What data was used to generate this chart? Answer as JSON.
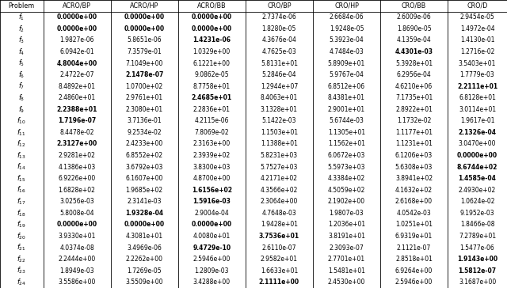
{
  "columns": [
    "Problem",
    "ACRO/BP",
    "ACRO/HP",
    "ACRO/BB",
    "CRO/BP",
    "CRO/HP",
    "CRO/BB",
    "CRO/D"
  ],
  "rows": [
    [
      "f_1",
      "0.0000e+00",
      "0.0000e+00",
      "0.0000e+00",
      "2.7374e-06",
      "2.6684e-06",
      "2.6009e-06",
      "2.9454e-05"
    ],
    [
      "f_2",
      "0.0000e+00",
      "0.0000e+00",
      "0.0000e+00",
      "1.8280e-05",
      "1.9248e-05",
      "1.8690e-05",
      "1.4972e-04"
    ],
    [
      "f_3",
      "1.9827e-06",
      "5.8651e-06",
      "1.4231e-06",
      "4.3676e-04",
      "5.3923e-04",
      "4.1359e-04",
      "1.4130e-01"
    ],
    [
      "f_4",
      "6.0942e-01",
      "7.3579e-01",
      "1.0329e+00",
      "4.7625e-03",
      "4.7484e-03",
      "4.4301e-03",
      "1.2716e-02"
    ],
    [
      "f_5",
      "4.8004e+00",
      "7.1049e+00",
      "6.1221e+00",
      "5.8131e+01",
      "5.8909e+01",
      "5.3928e+01",
      "3.5403e+01"
    ],
    [
      "f_6",
      "2.4722e-07",
      "2.1478e-07",
      "9.0862e-05",
      "5.2846e-04",
      "5.9767e-04",
      "6.2956e-04",
      "1.7779e-03"
    ],
    [
      "f_7",
      "8.4892e+01",
      "1.0700e+02",
      "8.7758e+01",
      "1.2944e+07",
      "6.8512e+06",
      "4.6210e+06",
      "2.2111e+01"
    ],
    [
      "f_8",
      "2.4860e+01",
      "2.9761e+01",
      "2.4685e+01",
      "8.4063e+01",
      "8.4381e+01",
      "7.1735e+01",
      "6.8128e+01"
    ],
    [
      "f_9",
      "2.2388e+01",
      "2.3080e+01",
      "2.2836e+01",
      "3.1328e+01",
      "2.9001e+01",
      "2.8922e+01",
      "3.0114e+01"
    ],
    [
      "f_10",
      "1.7196e-07",
      "3.7136e-01",
      "4.2115e-06",
      "5.1422e-03",
      "5.6744e-03",
      "1.1732e-02",
      "1.9617e-01"
    ],
    [
      "f_11",
      "8.4478e-02",
      "9.2534e-02",
      "7.8069e-02",
      "1.1503e+01",
      "1.1305e+01",
      "1.1177e+01",
      "2.1326e-04"
    ],
    [
      "f_12",
      "2.3127e+00",
      "2.4233e+00",
      "2.3163e+00",
      "1.1388e+01",
      "1.1562e+01",
      "1.1231e+01",
      "3.0470e+00"
    ],
    [
      "f_13",
      "2.9281e+02",
      "6.8552e+02",
      "2.3939e+02",
      "5.8231e+03",
      "6.0672e+03",
      "6.1206e+03",
      "0.0000e+00"
    ],
    [
      "f_14",
      "4.1386e+03",
      "3.6792e+03",
      "3.8300e+03",
      "5.7527e+03",
      "5.5973e+03",
      "5.6308e+03",
      "8.6744e+02"
    ],
    [
      "f_15",
      "6.9226e+00",
      "6.1607e+00",
      "4.8700e+00",
      "4.2171e+02",
      "4.3384e+02",
      "3.8941e+02",
      "1.4585e-04"
    ],
    [
      "f_16",
      "1.6828e+02",
      "1.9685e+02",
      "1.6156e+02",
      "4.3566e+02",
      "4.5059e+02",
      "4.1632e+02",
      "2.4930e+02"
    ],
    [
      "f_17",
      "3.0256e-03",
      "2.3141e-03",
      "1.5916e-03",
      "2.3064e+00",
      "2.1902e+00",
      "2.6168e+00",
      "1.0624e-02"
    ],
    [
      "f_18",
      "5.8008e-04",
      "1.9328e-04",
      "2.9004e-04",
      "4.7648e-03",
      "1.9807e-03",
      "4.0542e-03",
      "9.1952e-03"
    ],
    [
      "f_19",
      "0.0000e+00",
      "0.0000e+00",
      "0.0000e+00",
      "1.9428e+01",
      "1.2036e+01",
      "1.0251e+01",
      "1.8466e-08"
    ],
    [
      "f_20",
      "3.9330e+01",
      "4.3081e+01",
      "4.0080e+01",
      "3.7536e+01",
      "3.8191e+01",
      "6.9319e+01",
      "7.2789e+01"
    ],
    [
      "f_21",
      "4.0374e-08",
      "3.4969e-06",
      "9.4729e-10",
      "2.6110e-07",
      "2.3093e-07",
      "2.1121e-07",
      "1.5477e-06"
    ],
    [
      "f_22",
      "2.2444e+00",
      "2.2262e+00",
      "2.5946e+00",
      "2.9582e+01",
      "2.7701e+01",
      "2.8518e+01",
      "1.9143e+00"
    ],
    [
      "f_23",
      "1.8949e-03",
      "1.7269e-05",
      "1.2809e-03",
      "1.6633e+01",
      "1.5481e+01",
      "6.9264e+00",
      "1.5812e-07"
    ],
    [
      "f_24",
      "3.5586e+00",
      "3.5509e+00",
      "3.4288e+00",
      "2.1111e+00",
      "2.4530e+00",
      "2.5946e+00",
      "3.1687e+00"
    ]
  ],
  "bold": [
    [
      1,
      1,
      1,
      0,
      0,
      0,
      0
    ],
    [
      1,
      1,
      1,
      0,
      0,
      0,
      0
    ],
    [
      0,
      0,
      1,
      0,
      0,
      0,
      0
    ],
    [
      0,
      0,
      0,
      0,
      0,
      1,
      0
    ],
    [
      1,
      0,
      0,
      0,
      0,
      0,
      0
    ],
    [
      0,
      1,
      0,
      0,
      0,
      0,
      0
    ],
    [
      0,
      0,
      0,
      0,
      0,
      0,
      1
    ],
    [
      0,
      0,
      1,
      0,
      0,
      0,
      0
    ],
    [
      1,
      0,
      0,
      0,
      0,
      0,
      0
    ],
    [
      1,
      0,
      0,
      0,
      0,
      0,
      0
    ],
    [
      0,
      0,
      0,
      0,
      0,
      0,
      1
    ],
    [
      1,
      0,
      0,
      0,
      0,
      0,
      0
    ],
    [
      0,
      0,
      0,
      0,
      0,
      0,
      1
    ],
    [
      0,
      0,
      0,
      0,
      0,
      0,
      1
    ],
    [
      0,
      0,
      0,
      0,
      0,
      0,
      1
    ],
    [
      0,
      0,
      1,
      0,
      0,
      0,
      0
    ],
    [
      0,
      0,
      1,
      0,
      0,
      0,
      0
    ],
    [
      0,
      1,
      0,
      0,
      0,
      0,
      0
    ],
    [
      1,
      1,
      1,
      0,
      0,
      0,
      0
    ],
    [
      0,
      0,
      0,
      1,
      0,
      0,
      0
    ],
    [
      0,
      0,
      1,
      0,
      0,
      0,
      0
    ],
    [
      0,
      0,
      0,
      0,
      0,
      0,
      1
    ],
    [
      0,
      0,
      0,
      0,
      0,
      0,
      1
    ],
    [
      0,
      0,
      0,
      1,
      0,
      0,
      0
    ]
  ],
  "fig_width": 6.4,
  "fig_height": 3.64,
  "fontsize": 5.5,
  "header_fontsize": 5.8,
  "bg_color": "#f0f0f0",
  "lw": 0.6
}
